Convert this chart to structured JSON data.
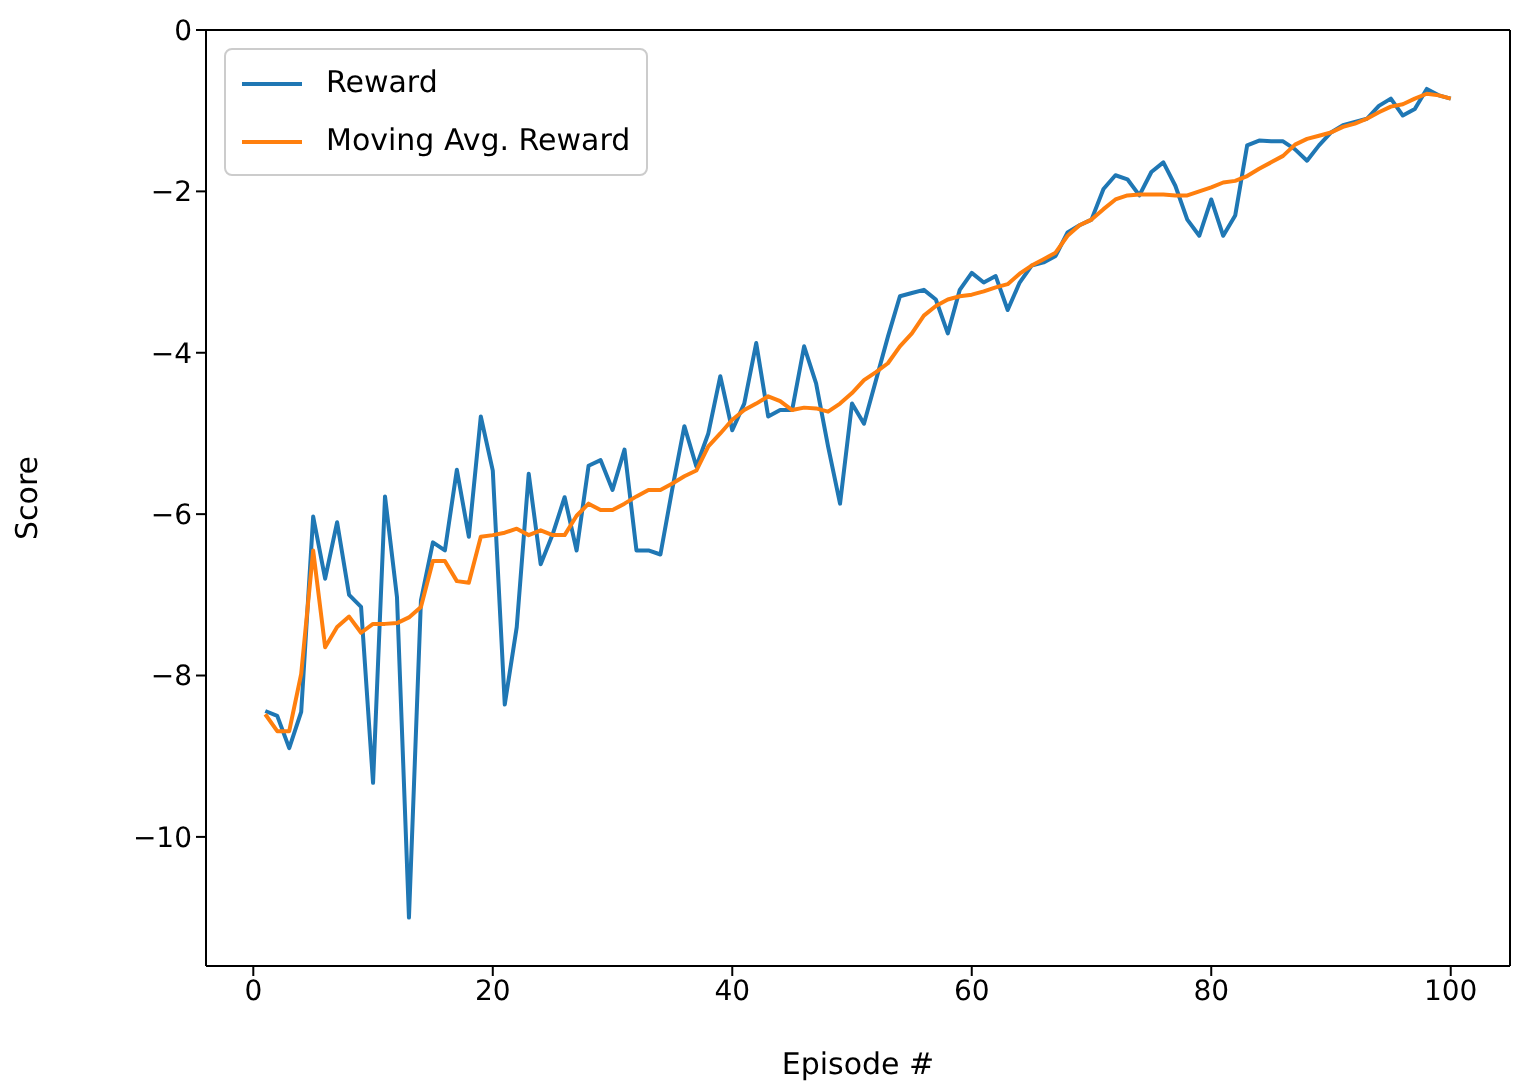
{
  "chart_data": {
    "type": "line",
    "xlabel": "Episode #",
    "ylabel": "Score",
    "x": [
      1,
      2,
      3,
      4,
      5,
      6,
      7,
      8,
      9,
      10,
      11,
      12,
      13,
      14,
      15,
      16,
      17,
      18,
      19,
      20,
      21,
      22,
      23,
      24,
      25,
      26,
      27,
      28,
      29,
      30,
      31,
      32,
      33,
      34,
      35,
      36,
      37,
      38,
      39,
      40,
      41,
      42,
      43,
      44,
      45,
      46,
      47,
      48,
      49,
      50,
      51,
      52,
      53,
      54,
      55,
      56,
      57,
      58,
      59,
      60,
      61,
      62,
      63,
      64,
      65,
      66,
      67,
      68,
      69,
      70,
      71,
      72,
      73,
      74,
      75,
      76,
      77,
      78,
      79,
      80,
      81,
      82,
      83,
      84,
      85,
      86,
      87,
      88,
      89,
      90,
      91,
      92,
      93,
      94,
      95,
      96,
      97,
      98,
      99,
      100
    ],
    "series": [
      {
        "name": "Reward",
        "color": "#1f77b4",
        "values": [
          -8.44,
          -8.5,
          -8.9,
          -8.45,
          -6.03,
          -6.8,
          -6.1,
          -7.0,
          -7.15,
          -9.33,
          -5.78,
          -7.03,
          -11.0,
          -7.07,
          -6.35,
          -6.45,
          -5.45,
          -6.28,
          -4.79,
          -5.46,
          -8.36,
          -7.4,
          -5.5,
          -6.62,
          -6.25,
          -5.79,
          -6.45,
          -5.4,
          -5.33,
          -5.7,
          -5.2,
          -6.45,
          -6.45,
          -6.5,
          -5.68,
          -4.91,
          -5.41,
          -5.0,
          -4.29,
          -4.96,
          -4.63,
          -3.88,
          -4.79,
          -4.71,
          -4.71,
          -3.92,
          -4.38,
          -5.16,
          -5.87,
          -4.63,
          -4.88,
          -4.34,
          -3.8,
          -3.3,
          -3.26,
          -3.22,
          -3.34,
          -3.76,
          -3.22,
          -3.01,
          -3.13,
          -3.05,
          -3.47,
          -3.13,
          -2.92,
          -2.88,
          -2.8,
          -2.51,
          -2.42,
          -2.35,
          -1.97,
          -1.8,
          -1.85,
          -2.05,
          -1.76,
          -1.64,
          -1.93,
          -2.35,
          -2.55,
          -2.1,
          -2.55,
          -2.3,
          -1.43,
          -1.37,
          -1.38,
          -1.38,
          -1.48,
          -1.62,
          -1.43,
          -1.27,
          -1.18,
          -1.14,
          -1.1,
          -0.94,
          -0.85,
          -1.06,
          -0.98,
          -0.73,
          -0.81,
          -0.85
        ]
      },
      {
        "name": "Moving Avg. Reward",
        "color": "#ff7f0e",
        "values": [
          -8.48,
          -8.69,
          -8.69,
          -7.98,
          -6.45,
          -7.65,
          -7.4,
          -7.27,
          -7.47,
          -7.36,
          -7.36,
          -7.35,
          -7.28,
          -7.15,
          -6.58,
          -6.58,
          -6.83,
          -6.85,
          -6.28,
          -6.26,
          -6.23,
          -6.18,
          -6.26,
          -6.2,
          -6.26,
          -6.26,
          -6.02,
          -5.87,
          -5.95,
          -5.95,
          -5.87,
          -5.78,
          -5.7,
          -5.7,
          -5.62,
          -5.53,
          -5.46,
          -5.16,
          -5.0,
          -4.83,
          -4.71,
          -4.63,
          -4.54,
          -4.6,
          -4.71,
          -4.68,
          -4.69,
          -4.73,
          -4.63,
          -4.5,
          -4.34,
          -4.24,
          -4.13,
          -3.92,
          -3.76,
          -3.54,
          -3.42,
          -3.34,
          -3.3,
          -3.28,
          -3.24,
          -3.19,
          -3.15,
          -3.02,
          -2.92,
          -2.84,
          -2.76,
          -2.55,
          -2.42,
          -2.35,
          -2.22,
          -2.1,
          -2.05,
          -2.04,
          -2.04,
          -2.04,
          -2.05,
          -2.05,
          -2.0,
          -1.95,
          -1.89,
          -1.87,
          -1.81,
          -1.72,
          -1.64,
          -1.56,
          -1.42,
          -1.35,
          -1.31,
          -1.27,
          -1.2,
          -1.16,
          -1.1,
          -1.02,
          -0.95,
          -0.92,
          -0.85,
          -0.79,
          -0.81,
          -0.85
        ]
      }
    ],
    "xlim": [
      -3.95,
      104.95
    ],
    "xticks": [
      0,
      20,
      40,
      60,
      80,
      100
    ],
    "ylim": [
      -11.6,
      0
    ],
    "yticks": [
      -10,
      -8,
      -6,
      -4,
      -2,
      0
    ],
    "grid": false,
    "legend": "top left",
    "marker": "none",
    "line_style": "solid"
  }
}
